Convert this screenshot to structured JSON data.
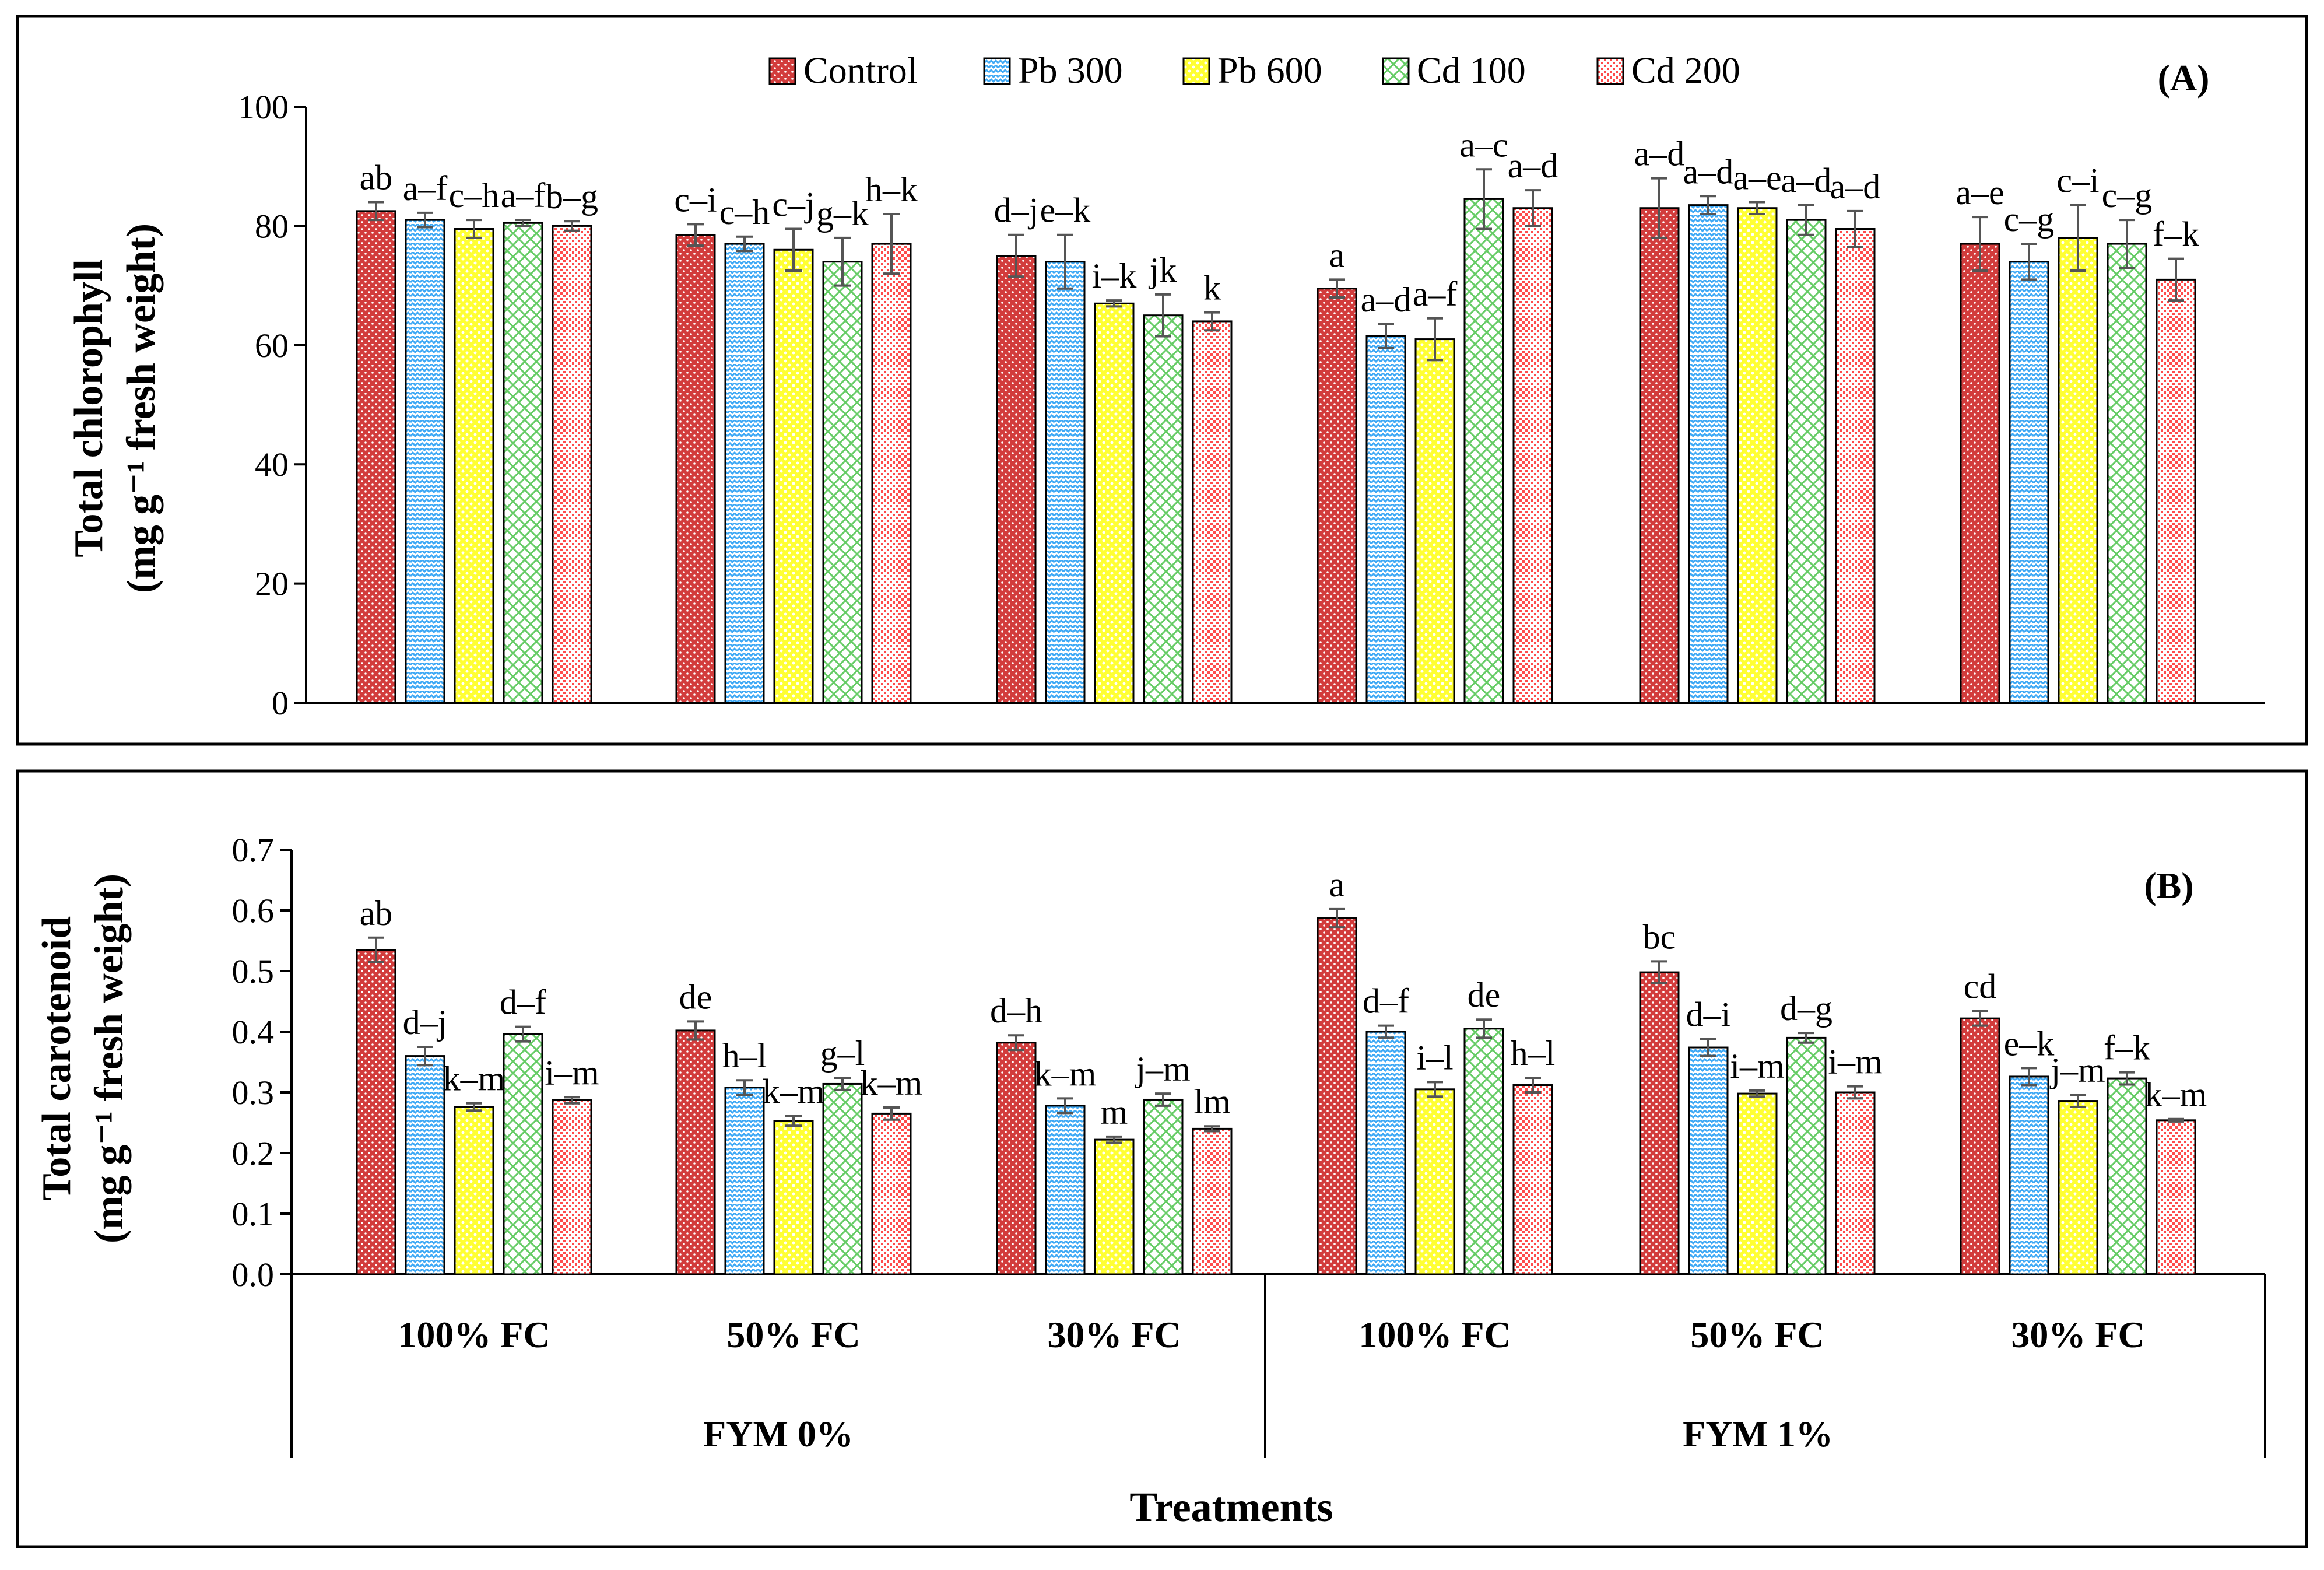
{
  "series_names": [
    "Control",
    "Pb 300",
    "Pb 600",
    "Cd 100",
    "Cd 200"
  ],
  "series_colors": [
    "#d23c3c",
    "#3fa9f5",
    "#ffff33",
    "#66cc66",
    "#ff4c4c"
  ],
  "x_axis": {
    "groups": [
      "100% FC",
      "50% FC",
      "30% FC",
      "100% FC",
      "50% FC",
      "30% FC"
    ],
    "supergroups": [
      "FYM 0%",
      "FYM 1%"
    ],
    "title": "Treatments"
  },
  "chart_data": [
    {
      "type": "bar",
      "panel_label": "(A)",
      "ylabel_line1": "Total chlorophyll",
      "ylabel_line2": "(mg g⁻¹ fresh weight)",
      "ylim": [
        0,
        100
      ],
      "yticks": [
        "0",
        "20",
        "40",
        "60",
        "80",
        "100"
      ],
      "ytick_values": [
        0,
        20,
        40,
        60,
        80,
        100
      ],
      "categories": [
        "100% FC",
        "50% FC",
        "30% FC",
        "100% FC",
        "50% FC",
        "30% FC"
      ],
      "legend": "top",
      "series": [
        {
          "name": "Control",
          "values": [
            82.5,
            78.5,
            75,
            69.5,
            83,
            77
          ],
          "errors": [
            1.5,
            1.8,
            3.5,
            1.5,
            5,
            4.5
          ],
          "labels": [
            "ab",
            "c–i",
            "d–j",
            "a",
            "a–d",
            "a–e"
          ]
        },
        {
          "name": "Pb 300",
          "values": [
            81,
            77,
            74,
            61.5,
            83.5,
            74
          ],
          "errors": [
            1.2,
            1.2,
            4.5,
            2,
            1.5,
            3
          ],
          "labels": [
            "a–f",
            "c–h",
            "e–k",
            "a–d",
            "a–d",
            "c–g"
          ]
        },
        {
          "name": "Pb 600",
          "values": [
            79.5,
            76,
            67,
            61,
            83,
            78
          ],
          "errors": [
            1.5,
            3.5,
            0.5,
            3.5,
            1,
            5.5
          ],
          "labels": [
            "c–h",
            "c–j",
            "i–k",
            "a–f",
            "a–e",
            "c–i"
          ]
        },
        {
          "name": "Cd 100",
          "values": [
            80.5,
            74,
            65,
            84.5,
            81,
            77
          ],
          "errors": [
            0.5,
            4,
            3.5,
            5,
            2.5,
            4
          ],
          "labels": [
            "a–f",
            "g–k",
            "jk",
            "a–c",
            "a–d",
            "c–g"
          ]
        },
        {
          "name": "Cd 200",
          "values": [
            80,
            77,
            64,
            83,
            79.5,
            71
          ],
          "errors": [
            0.8,
            5,
            1.5,
            3,
            3,
            3.5
          ],
          "labels": [
            "b–g",
            "h–k",
            "k",
            "a–d",
            "a–d",
            "f–k"
          ]
        }
      ]
    },
    {
      "type": "bar",
      "panel_label": "(B)",
      "ylabel_line1": "Total carotenoid",
      "ylabel_line2": "(mg g⁻¹ fresh weight)",
      "ylim": [
        0,
        0.7
      ],
      "yticks": [
        "0.0",
        "0.1",
        "0.2",
        "0.3",
        "0.4",
        "0.5",
        "0.6",
        "0.7"
      ],
      "ytick_values": [
        0,
        0.1,
        0.2,
        0.3,
        0.4,
        0.5,
        0.6,
        0.7
      ],
      "categories": [
        "100% FC",
        "50% FC",
        "30% FC",
        "100% FC",
        "50% FC",
        "30% FC"
      ],
      "series": [
        {
          "name": "Control",
          "values": [
            0.535,
            0.402,
            0.382,
            0.587,
            0.498,
            0.422
          ],
          "errors": [
            0.02,
            0.015,
            0.012,
            0.015,
            0.018,
            0.012
          ],
          "labels": [
            "ab",
            "de",
            "d–h",
            "a",
            "bc",
            "cd"
          ]
        },
        {
          "name": "Pb 300",
          "values": [
            0.36,
            0.308,
            0.278,
            0.4,
            0.374,
            0.326
          ],
          "errors": [
            0.015,
            0.012,
            0.012,
            0.01,
            0.014,
            0.014
          ],
          "labels": [
            "d–j",
            "h–l",
            "k–m",
            "d–f",
            "d–i",
            "e–k"
          ]
        },
        {
          "name": "Pb 600",
          "values": [
            0.276,
            0.253,
            0.222,
            0.305,
            0.298,
            0.286
          ],
          "errors": [
            0.006,
            0.008,
            0.005,
            0.012,
            0.005,
            0.01
          ],
          "labels": [
            "k–m",
            "k–m",
            "m",
            "i–l",
            "i–m",
            "j–m"
          ]
        },
        {
          "name": "Cd 100",
          "values": [
            0.396,
            0.314,
            0.288,
            0.405,
            0.39,
            0.323
          ],
          "errors": [
            0.012,
            0.01,
            0.01,
            0.015,
            0.008,
            0.01
          ],
          "labels": [
            "d–f",
            "g–l",
            "j–m",
            "de",
            "d–g",
            "f–k"
          ]
        },
        {
          "name": "Cd 200",
          "values": [
            0.287,
            0.265,
            0.24,
            0.312,
            0.3,
            0.254
          ],
          "errors": [
            0.005,
            0.01,
            0.004,
            0.012,
            0.01,
            0.002
          ],
          "labels": [
            "i–m",
            "k–m",
            "lm",
            "h–l",
            "i–m",
            "k–m"
          ]
        }
      ]
    }
  ]
}
